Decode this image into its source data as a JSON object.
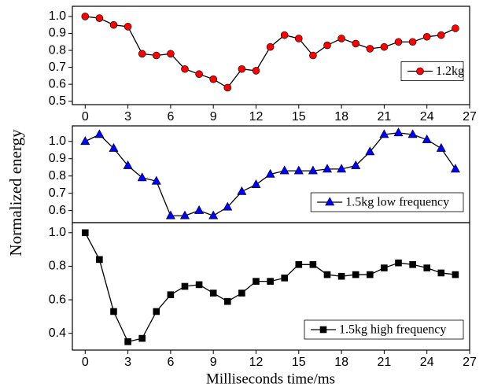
{
  "chart_data": [
    {
      "type": "line",
      "x": [
        0,
        1,
        2,
        3,
        4,
        5,
        6,
        7,
        8,
        9,
        10,
        11,
        12,
        13,
        14,
        15,
        16,
        17,
        18,
        19,
        20,
        21,
        22,
        23,
        24,
        25,
        26
      ],
      "series": [
        {
          "name": "1.2kg",
          "color": "#ff0000",
          "marker": "circle",
          "values": [
            1.0,
            0.99,
            0.95,
            0.94,
            0.78,
            0.77,
            0.78,
            0.69,
            0.66,
            0.63,
            0.58,
            0.69,
            0.68,
            0.82,
            0.89,
            0.87,
            0.77,
            0.83,
            0.87,
            0.84,
            0.81,
            0.82,
            0.85,
            0.85,
            0.88,
            0.89,
            0.93
          ]
        }
      ],
      "xlim": [
        -0.9,
        27
      ],
      "ylim": [
        0.48,
        1.06
      ],
      "xticks": [
        0,
        3,
        6,
        9,
        12,
        15,
        18,
        21,
        24,
        27
      ],
      "yticks": [
        {
          "value": 0.5,
          "label": "0.5"
        },
        {
          "value": 0.6,
          "label": "0.6"
        },
        {
          "value": 0.7,
          "label": "0.7"
        },
        {
          "value": 0.8,
          "label": "0.8"
        },
        {
          "value": 0.9,
          "label": "0.9"
        },
        {
          "value": 1.0,
          "label": "1.0"
        }
      ],
      "legend": "right"
    },
    {
      "type": "line",
      "x": [
        0,
        1,
        2,
        3,
        4,
        5,
        6,
        7,
        8,
        9,
        10,
        11,
        12,
        13,
        14,
        15,
        16,
        17,
        18,
        19,
        20,
        21,
        22,
        23,
        24,
        25,
        26
      ],
      "series": [
        {
          "name": "1.5kg low frequency",
          "color": "#0000ff",
          "marker": "triangle",
          "values": [
            1.0,
            1.04,
            0.96,
            0.86,
            0.79,
            0.77,
            0.57,
            0.57,
            0.6,
            0.57,
            0.62,
            0.71,
            0.75,
            0.81,
            0.83,
            0.83,
            0.83,
            0.84,
            0.84,
            0.86,
            0.94,
            1.04,
            1.05,
            1.04,
            1.01,
            0.96,
            0.84
          ]
        }
      ],
      "xlim": [
        -0.9,
        27
      ],
      "ylim": [
        0.53,
        1.09
      ],
      "yticks": [
        {
          "value": 0.6,
          "label": "0.6"
        },
        {
          "value": 0.7,
          "label": "0.7"
        },
        {
          "value": 0.8,
          "label": "0.8"
        },
        {
          "value": 0.9,
          "label": "0.9"
        },
        {
          "value": 1.0,
          "label": "1.0"
        }
      ],
      "y_label": "Normalized energy",
      "legend": "lower right"
    },
    {
      "type": "line",
      "x": [
        0,
        1,
        2,
        3,
        4,
        5,
        6,
        7,
        8,
        9,
        10,
        11,
        12,
        13,
        14,
        15,
        16,
        17,
        18,
        19,
        20,
        21,
        22,
        23,
        24,
        25,
        26
      ],
      "series": [
        {
          "name": "1.5kg high frequency",
          "color": "#000000",
          "marker": "square",
          "values": [
            1.0,
            0.84,
            0.53,
            0.35,
            0.37,
            0.53,
            0.63,
            0.68,
            0.69,
            0.64,
            0.59,
            0.64,
            0.71,
            0.71,
            0.73,
            0.81,
            0.81,
            0.75,
            0.74,
            0.75,
            0.75,
            0.79,
            0.82,
            0.81,
            0.79,
            0.76,
            0.75
          ]
        }
      ],
      "xlim": [
        -0.9,
        27
      ],
      "ylim": [
        0.3,
        1.06
      ],
      "xticks": [
        0,
        3,
        6,
        9,
        12,
        15,
        18,
        21,
        24,
        27
      ],
      "yticks": [
        {
          "value": 0.4,
          "label": "0.4"
        },
        {
          "value": 0.6,
          "label": "0.6"
        },
        {
          "value": 0.8,
          "label": "0.8"
        },
        {
          "value": 1.0,
          "label": "1.0"
        }
      ],
      "x_label": "Milliseconds time/ms",
      "legend": "lower right"
    }
  ]
}
